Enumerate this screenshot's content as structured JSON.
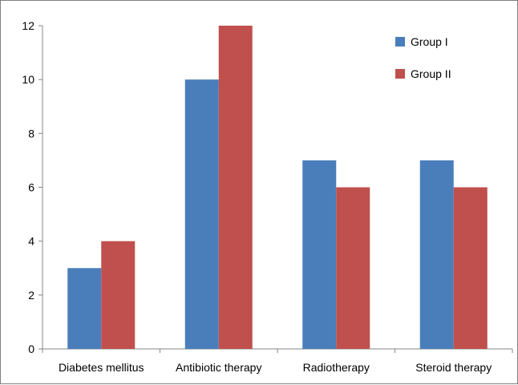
{
  "chart_data": {
    "type": "bar",
    "title": "",
    "xlabel": "",
    "ylabel": "",
    "categories": [
      "Diabetes mellitus",
      "Antibiotic therapy",
      "Radiotherapy",
      "Steroid therapy"
    ],
    "series": [
      {
        "name": "Group I",
        "values": [
          3,
          10,
          7,
          7
        ],
        "color": "#4a7ebb"
      },
      {
        "name": "Group II",
        "values": [
          4,
          12,
          6,
          6
        ],
        "color": "#c0504d"
      }
    ],
    "ylim": [
      0,
      12
    ],
    "yticks": [
      "0",
      "2",
      "4",
      "6",
      "8",
      "10",
      "12"
    ],
    "grid": false,
    "legend_position": "top-right"
  }
}
